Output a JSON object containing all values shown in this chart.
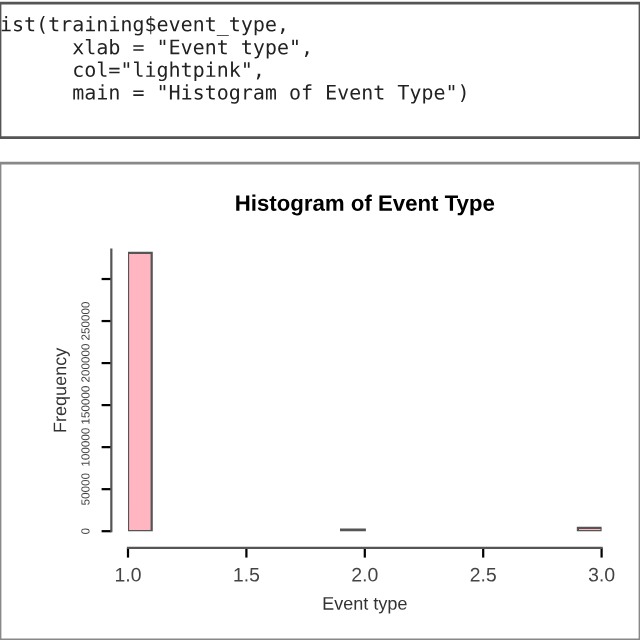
{
  "chart_data": {
    "type": "histogram",
    "title": "Histogram of Event Type",
    "xlabel": "Event type",
    "ylabel": "Frequency",
    "annotations": [
      "ist(training$event_type,\n      xlab = \"Event type\",\n      col=\"lightpink\",\n      main = \"Histogram of Event Type\")"
    ],
    "bins": [
      1.0,
      1.1,
      1.2,
      1.3,
      1.4,
      1.5,
      1.6,
      1.7,
      1.8,
      1.9,
      2.0,
      2.1,
      2.2,
      2.3,
      2.4,
      2.5,
      2.6,
      2.7,
      2.8,
      2.9,
      3.0
    ],
    "values": [
      331000,
      0,
      0,
      0,
      0,
      0,
      0,
      0,
      0,
      2000,
      0,
      0,
      0,
      0,
      0,
      0,
      0,
      0,
      0,
      4000
    ],
    "color": "#ffb6c1",
    "xlim": [
      1.0,
      3.0
    ],
    "xticks": [
      {
        "value": 1.0,
        "label": "1.0"
      },
      {
        "value": 1.5,
        "label": "1.5"
      },
      {
        "value": 2.0,
        "label": "2.0"
      },
      {
        "value": 2.5,
        "label": "2.5"
      },
      {
        "value": 3.0,
        "label": "3.0"
      }
    ],
    "ylim": [
      0,
      335000
    ],
    "yticks": [
      0,
      50000,
      100000,
      150000,
      200000,
      250000,
      {
        "value": 300000,
        "label": null
      }
    ],
    "grid": false,
    "legend": false
  }
}
